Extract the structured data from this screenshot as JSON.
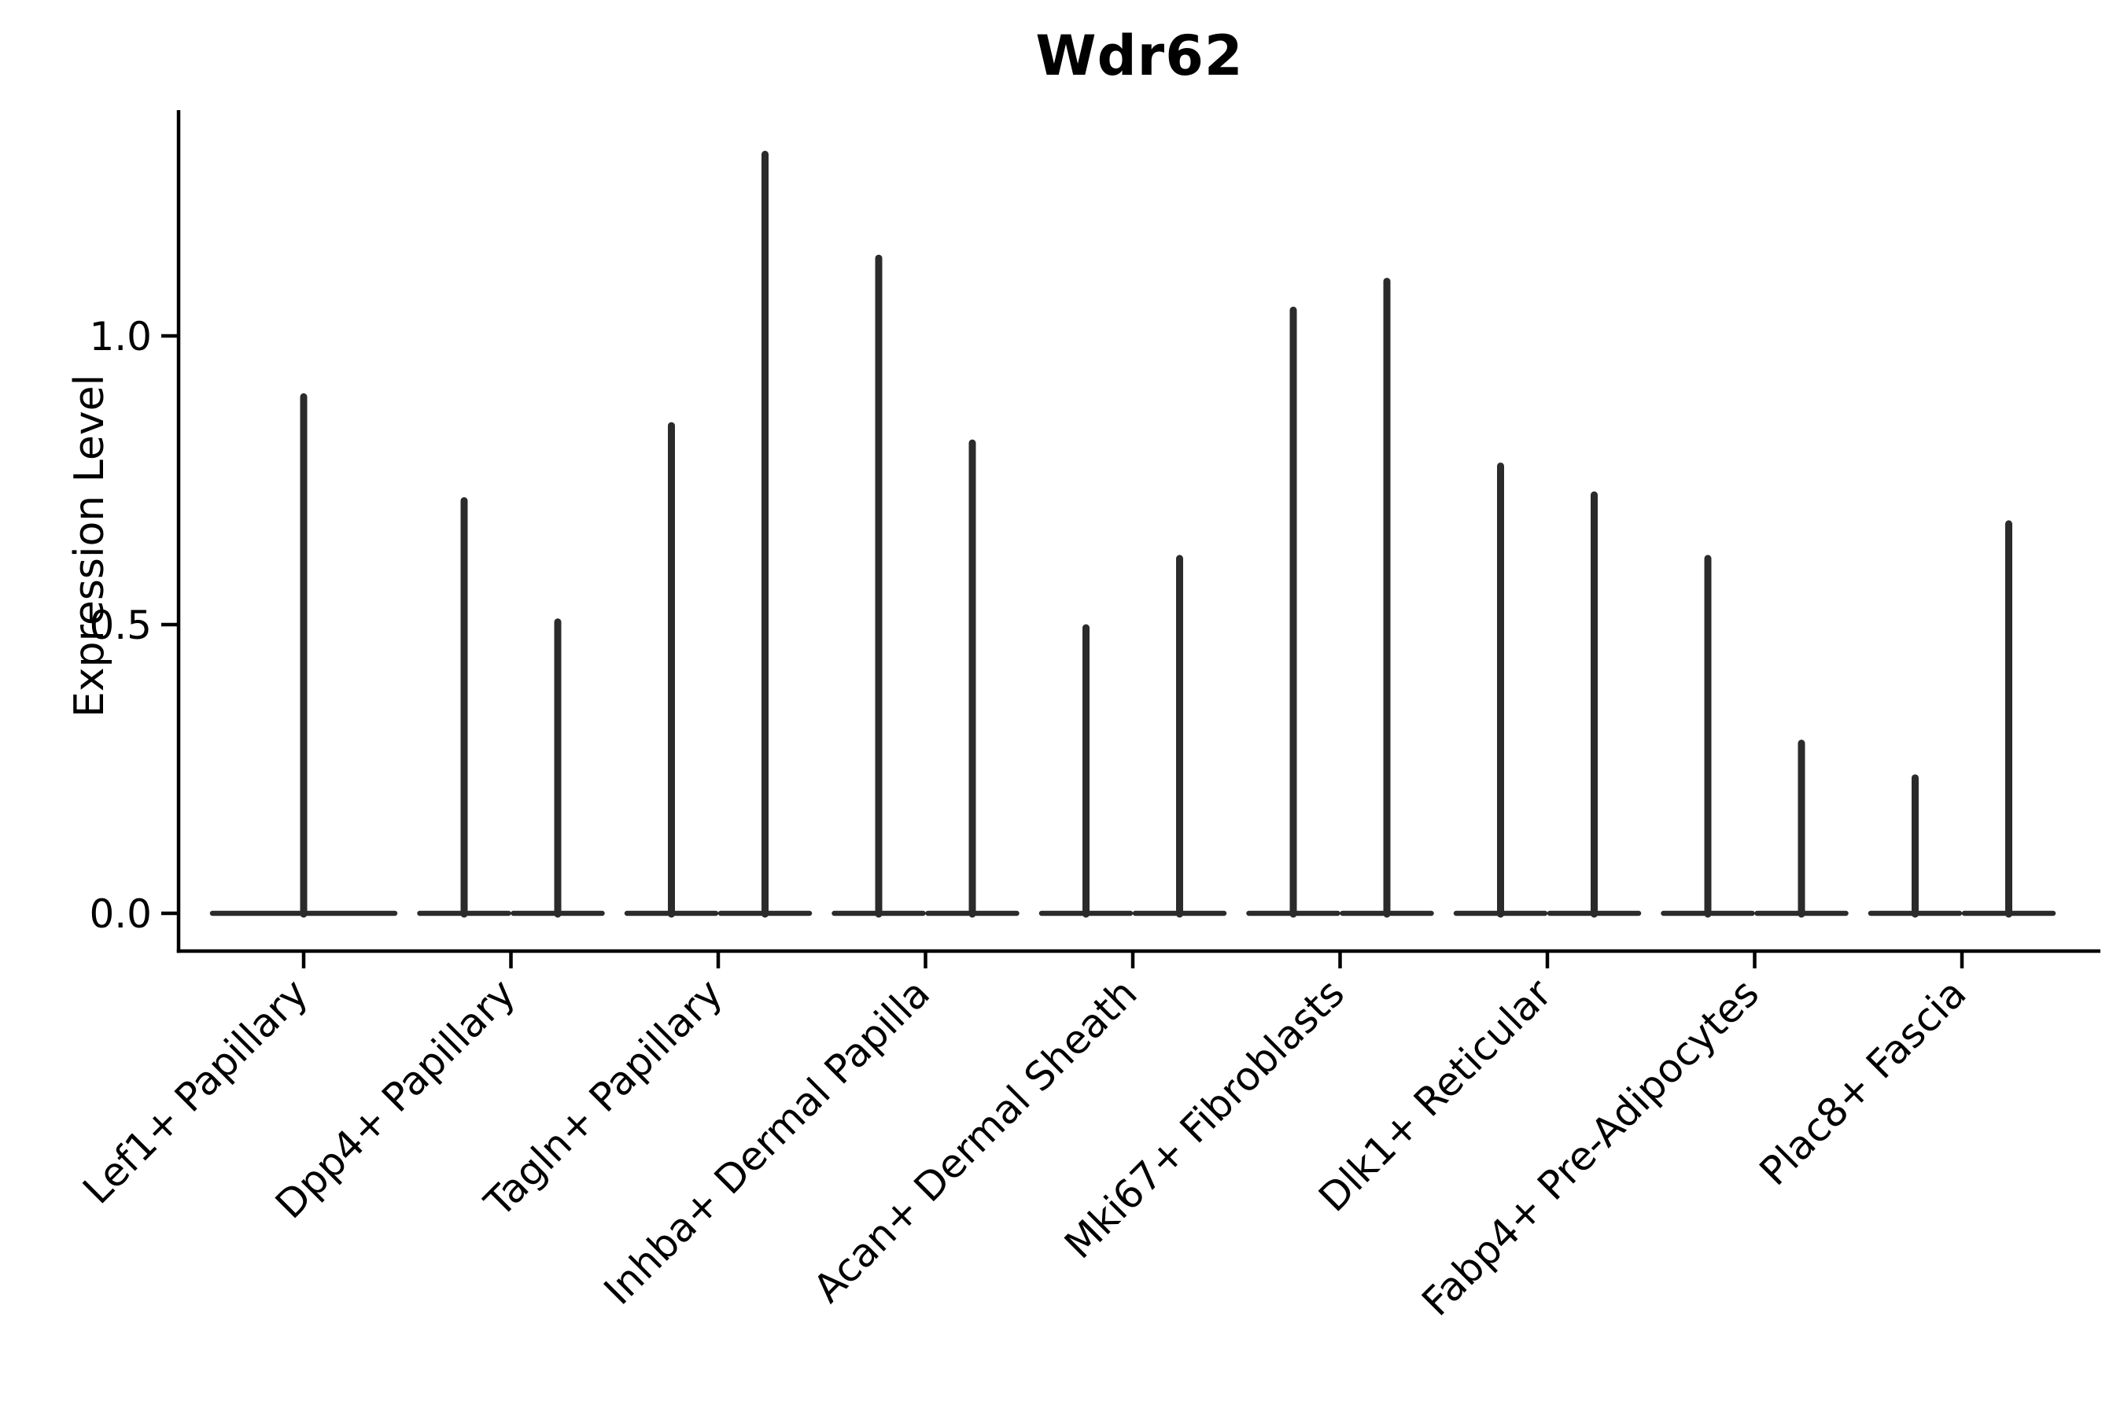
{
  "chart_data": {
    "type": "violin",
    "title": "Wdr62",
    "xlabel": "",
    "ylabel": "Expression Level",
    "legend": "none",
    "grid": false,
    "x_label_rotation": 45,
    "ylim": [
      -0.07,
      1.39
    ],
    "yticks": [
      0.0,
      0.5,
      1.0
    ],
    "ytick_labels": [
      "0.0",
      "0.5",
      "1.0"
    ],
    "categories": [
      "Lef1+ Papillary",
      "Dpp4+ Papillary",
      "Tagln+ Papillary",
      "Inhba+ Dermal Papilla",
      "Acan+ Dermal Sheath",
      "Mki67+ Fibroblasts",
      "Dlk1+ Reticular",
      "Fabp4+ Pre-Adipocytes",
      "Plac8+ Fascia"
    ],
    "series_note": "Each category shows narrow violins: a wide flat base at expression 0 and a thin tail up to the max expression value. Category 1 has a single centered violin; all others have two violins (left, right).",
    "violins": [
      {
        "category": "Lef1+ Papillary",
        "max_values": [
          0.9
        ]
      },
      {
        "category": "Dpp4+ Papillary",
        "max_values": [
          0.72,
          0.51
        ]
      },
      {
        "category": "Tagln+ Papillary",
        "max_values": [
          0.85,
          1.32
        ]
      },
      {
        "category": "Inhba+ Dermal Papilla",
        "max_values": [
          1.14,
          0.82
        ]
      },
      {
        "category": "Acan+ Dermal Sheath",
        "max_values": [
          0.5,
          0.62
        ]
      },
      {
        "category": "Mki67+ Fibroblasts",
        "max_values": [
          1.05,
          1.1
        ]
      },
      {
        "category": "Dlk1+ Reticular",
        "max_values": [
          0.78,
          0.73
        ]
      },
      {
        "category": "Fabp4+ Pre-Adipocytes",
        "max_values": [
          0.62,
          0.3
        ]
      },
      {
        "category": "Plac8+ Fascia",
        "max_values": [
          0.24,
          0.68
        ]
      }
    ],
    "colors": {
      "violin": "#2b2b2b",
      "axis": "#000000",
      "text": "#000000",
      "background": "#ffffff"
    }
  }
}
